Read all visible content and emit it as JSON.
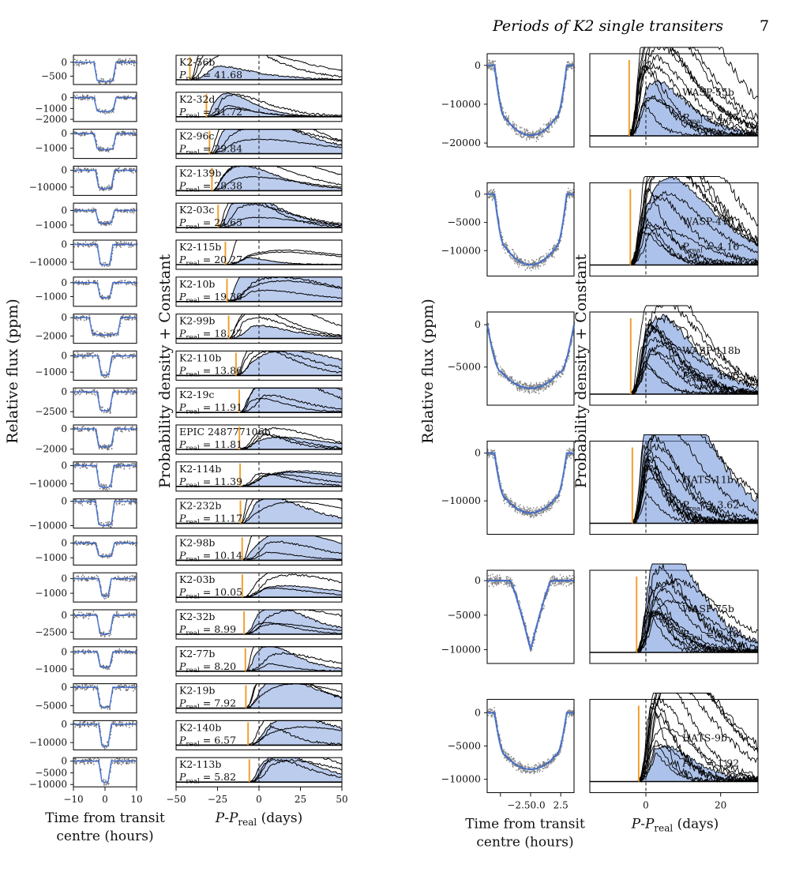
{
  "header": {
    "running_title": "Periods of K2 single transiters",
    "page_number": "7"
  },
  "labels": {
    "flux_ylabel": "Relative flux (ppm)",
    "prob_ylabel": "Probability density + Constant",
    "time_xlabel_line1": "Time from transit",
    "time_xlabel_line2": "centre (hours)",
    "period_xlabel": "P-P_real (days)",
    "preal_prefix": "P",
    "preal_sub": "real"
  },
  "chart_data": [
    {
      "type": "line",
      "title": "",
      "xlabel": "P-P_real (days)",
      "ylabel": "Probability density + Constant",
      "xlim": [
        -50,
        50
      ],
      "xticks": [
        -50,
        -25,
        0,
        25,
        50
      ],
      "flux_xticks": [
        -10,
        0,
        10
      ],
      "grid": false,
      "planets": [
        {
          "name": "K2-56b",
          "p_real": "41.68",
          "yticks": [
            "0",
            "−500"
          ],
          "ylim": [
            -800,
            250
          ],
          "depth": -700,
          "width": 3.5
        },
        {
          "name": "K2-32d",
          "p_real": "31.72",
          "yticks": [
            "0",
            "−1000",
            "−2000"
          ],
          "ylim": [
            -2200,
            500
          ],
          "depth": -1300,
          "width": 3.5
        },
        {
          "name": "K2-96c",
          "p_real": "29.84",
          "yticks": [
            "0",
            "−1000"
          ],
          "ylim": [
            -1700,
            300
          ],
          "depth": -1100,
          "width": 3.5
        },
        {
          "name": "K2-139b",
          "p_real": "28.38",
          "yticks": [
            "0",
            "−10000"
          ],
          "ylim": [
            -15000,
            2500
          ],
          "depth": -11000,
          "width": 3.0
        },
        {
          "name": "K2-03c",
          "p_real": "24.65",
          "yticks": [
            "0",
            "−1000"
          ],
          "ylim": [
            -1500,
            500
          ],
          "depth": -900,
          "width": 3.0
        },
        {
          "name": "K2-115b",
          "p_real": "20.27",
          "yticks": [
            "0",
            "−10000"
          ],
          "ylim": [
            -14000,
            2500
          ],
          "depth": -11500,
          "width": 2.5
        },
        {
          "name": "K2-10b",
          "p_real": "19.30",
          "yticks": [
            "0",
            "−1000"
          ],
          "ylim": [
            -1700,
            400
          ],
          "depth": -1100,
          "width": 2.5
        },
        {
          "name": "K2-99b",
          "p_real": "18.27",
          "yticks": [
            "0",
            "−2000"
          ],
          "ylim": [
            -2800,
            400
          ],
          "depth": -1900,
          "width": 5.0
        },
        {
          "name": "K2-110b",
          "p_real": "13.86",
          "yticks": [
            "0",
            "−1000"
          ],
          "ylim": [
            -1500,
            300
          ],
          "depth": -1200,
          "width": 2.2
        },
        {
          "name": "K2-19c",
          "p_real": "11.91",
          "yticks": [
            "0",
            "−2500"
          ],
          "ylim": [
            -3200,
            500
          ],
          "depth": -2400,
          "width": 2.5
        },
        {
          "name": "EPIC 248777106b",
          "p_real": "11.81",
          "yticks": [
            "0",
            "−2000"
          ],
          "ylim": [
            -2500,
            400
          ],
          "depth": -1800,
          "width": 3.0
        },
        {
          "name": "K2-114b",
          "p_real": "11.39",
          "yticks": [
            "0",
            "−10000"
          ],
          "ylim": [
            -14000,
            2000
          ],
          "depth": -12000,
          "width": 2.8
        },
        {
          "name": "K2-232b",
          "p_real": "11.17",
          "yticks": [
            "0",
            "−10000"
          ],
          "ylim": [
            -11000,
            1000
          ],
          "depth": -10000,
          "width": 3.0
        },
        {
          "name": "K2-98b",
          "p_real": "10.14",
          "yticks": [
            "0",
            "−1000"
          ],
          "ylim": [
            -1500,
            500
          ],
          "depth": -900,
          "width": 3.0
        },
        {
          "name": "K2-03b",
          "p_real": "10.05",
          "yticks": [
            "0",
            "−1000"
          ],
          "ylim": [
            -1600,
            400
          ],
          "depth": -1200,
          "width": 2.0
        },
        {
          "name": "K2-32b",
          "p_real": "8.99",
          "yticks": [
            "0",
            "−2500"
          ],
          "ylim": [
            -3500,
            800
          ],
          "depth": -2800,
          "width": 2.6
        },
        {
          "name": "K2-77b",
          "p_real": "8.20",
          "yticks": [
            "0",
            "−1000"
          ],
          "ylim": [
            -1400,
            300
          ],
          "depth": -900,
          "width": 2.5
        },
        {
          "name": "K2-19b",
          "p_real": "7.92",
          "yticks": [
            "0",
            "−5000"
          ],
          "ylim": [
            -7000,
            1000
          ],
          "depth": -5500,
          "width": 2.5
        },
        {
          "name": "K2-140b",
          "p_real": "6.57",
          "yticks": [
            "0",
            "−10000"
          ],
          "ylim": [
            -14000,
            2000
          ],
          "depth": -12000,
          "width": 2.0
        },
        {
          "name": "K2-113b",
          "p_real": "5.82",
          "yticks": [
            "0",
            "−5000",
            "−10000"
          ],
          "ylim": [
            -11000,
            1500
          ],
          "depth": -9000,
          "width": 2.0
        }
      ]
    },
    {
      "type": "line",
      "title": "",
      "xlabel": "P-P_real (days)",
      "ylabel": "Probability density + Constant",
      "xlim": [
        -15,
        30
      ],
      "xticks": [
        0,
        20
      ],
      "flux_xticks": [
        -2.5,
        0.0,
        2.5
      ],
      "flux_xtick_labels": [
        "−2.5",
        "0.0",
        "2.5"
      ],
      "grid": false,
      "planets": [
        {
          "name": "WASP-55b",
          "p_real": "4.47",
          "yticks": [
            "0",
            "−10000",
            "−20000"
          ],
          "ylim": [
            -21000,
            3000
          ],
          "depth": -18000,
          "shape": "u"
        },
        {
          "name": "WASP-47b",
          "p_real": "4.16",
          "yticks": [
            "0",
            "−5000",
            "−10000"
          ],
          "ylim": [
            -14500,
            2000
          ],
          "depth": -12500,
          "shape": "u"
        },
        {
          "name": "WASP-118b",
          "p_real": "4.05",
          "yticks": [
            "0",
            "−5000"
          ],
          "ylim": [
            -9500,
            1500
          ],
          "depth": -7500,
          "shape": "wide"
        },
        {
          "name": "HATS-11b",
          "p_real": "3.62",
          "yticks": [
            "0",
            "−10000"
          ],
          "ylim": [
            -17000,
            2500
          ],
          "depth": -12500,
          "shape": "u"
        },
        {
          "name": "WASP-75b",
          "p_real": "2.48",
          "yticks": [
            "0",
            "−5000",
            "−10000"
          ],
          "ylim": [
            -12000,
            1500
          ],
          "depth": -10000,
          "shape": "v"
        },
        {
          "name": "HATS-9b",
          "p_real": "1.92",
          "yticks": [
            "0",
            "−5000",
            "−10000"
          ],
          "ylim": [
            -12000,
            2000
          ],
          "depth": -8500,
          "shape": "u"
        }
      ]
    }
  ]
}
